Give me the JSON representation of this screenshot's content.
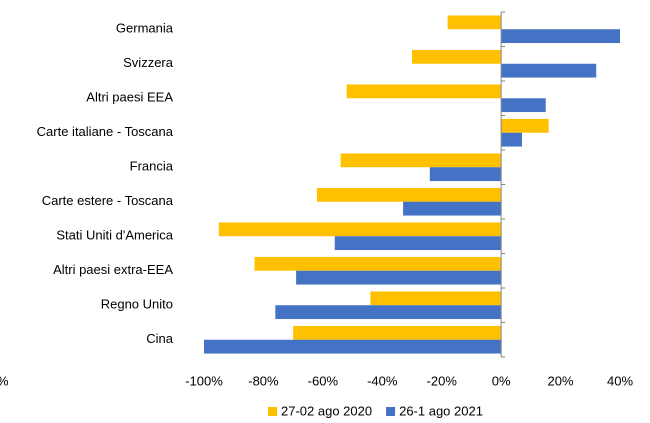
{
  "chart_data": {
    "type": "bar",
    "orientation": "horizontal",
    "annotation": "%",
    "categories": [
      "Germania",
      "Svizzera",
      "Altri paesi EEA",
      "Carte italiane - Toscana",
      "Francia",
      "Carte estere - Toscana",
      "Stati Uniti d'America",
      "Altri paesi extra-EEA",
      "Regno Unito",
      "Cina"
    ],
    "series": [
      {
        "name": "27-02 ago 2020",
        "color": "#ffc000",
        "values": [
          -18,
          -30,
          -52,
          16,
          -54,
          -62,
          -95,
          -83,
          -44,
          -70
        ]
      },
      {
        "name": "26-1 ago 2021",
        "color": "#4472c4",
        "values": [
          40,
          32,
          15,
          7,
          -24,
          -33,
          -56,
          -69,
          -76,
          -100
        ]
      }
    ],
    "xlim": [
      -100,
      40
    ],
    "xticks": [
      {
        "value": -100,
        "label": "-100%"
      },
      {
        "value": -80,
        "label": "-80%"
      },
      {
        "value": -60,
        "label": "-60%"
      },
      {
        "value": -40,
        "label": "-40%"
      },
      {
        "value": -20,
        "label": "-20%"
      },
      {
        "value": 0,
        "label": "0%"
      },
      {
        "value": 20,
        "label": "20%"
      },
      {
        "value": 40,
        "label": "40%"
      }
    ],
    "grid": false,
    "legend": "bottom"
  }
}
